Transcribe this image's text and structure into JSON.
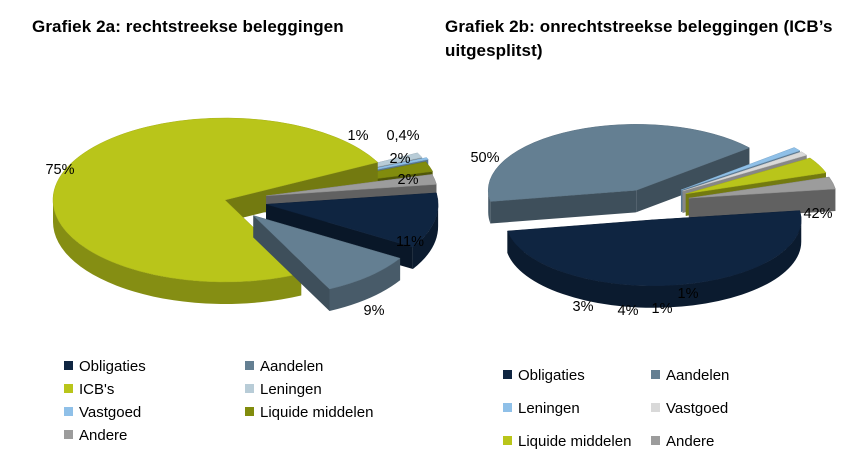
{
  "chart_data": [
    {
      "id": "chart-a",
      "type": "pie",
      "title": "Grafiek 2a: rechtstreekse beleggingen",
      "categories": [
        "Obligaties",
        "Aandelen",
        "ICB's",
        "Leningen",
        "Vastgoed",
        "Liquide middelen",
        "Andere"
      ],
      "values": [
        11,
        9,
        75,
        1,
        0.4,
        2,
        2
      ],
      "labels": [
        "11%",
        "9%",
        "75%",
        "1%",
        "0,4%",
        "2%",
        "2%"
      ],
      "colors": [
        "#0f2541",
        "#647f92",
        "#b9c51a",
        "#b8ccd7",
        "#8fc0e8",
        "#818c0d",
        "#9c9c9c"
      ],
      "legend": [
        "Obligaties",
        "Aandelen",
        "ICB's",
        "Leningen",
        "Vastgoed",
        "Liquide middelen",
        "Andere"
      ]
    },
    {
      "id": "chart-b",
      "type": "pie",
      "title": "Grafiek 2b: onrechtstreekse beleggingen (ICB’s uitgesplitst)",
      "categories": [
        "Obligaties",
        "Aandelen",
        "Leningen",
        "Vastgoed",
        "Liquide middelen",
        "Andere"
      ],
      "values": [
        50,
        42,
        1,
        1,
        4,
        3
      ],
      "labels": [
        "50%",
        "42%",
        "1%",
        "1%",
        "4%",
        "3%"
      ],
      "colors": [
        "#0f2541",
        "#647f92",
        "#8fc0e8",
        "#d9d9d9",
        "#b9c51a",
        "#9c9c9c"
      ],
      "legend": [
        "Obligaties",
        "Aandelen",
        "Leningen",
        "Vastgoed",
        "Liquide middelen",
        "Andere"
      ]
    }
  ]
}
